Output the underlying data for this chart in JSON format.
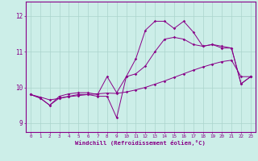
{
  "xlabel": "Windchill (Refroidissement éolien,°C)",
  "background_color": "#cceee8",
  "grid_color": "#aad4cc",
  "line_color": "#880088",
  "x_hours": [
    0,
    1,
    2,
    3,
    4,
    5,
    6,
    7,
    8,
    9,
    10,
    11,
    12,
    13,
    14,
    15,
    16,
    17,
    18,
    19,
    20,
    21,
    22,
    23
  ],
  "line_jagged": [
    9.8,
    9.7,
    9.5,
    9.7,
    9.75,
    9.8,
    9.8,
    9.75,
    9.75,
    9.15,
    10.3,
    10.8,
    11.6,
    11.85,
    11.85,
    11.65,
    11.85,
    11.55,
    11.15,
    11.2,
    11.15,
    11.1,
    10.1,
    10.3
  ],
  "line_mid": [
    9.8,
    9.7,
    9.5,
    9.75,
    9.82,
    9.85,
    9.85,
    9.8,
    10.3,
    9.85,
    10.3,
    10.38,
    10.6,
    11.0,
    11.35,
    11.4,
    11.35,
    11.2,
    11.15,
    11.2,
    11.1,
    11.1,
    10.1,
    10.3
  ],
  "line_smooth": [
    9.8,
    9.73,
    9.65,
    9.69,
    9.74,
    9.77,
    9.8,
    9.82,
    9.84,
    9.83,
    9.87,
    9.93,
    10.0,
    10.09,
    10.18,
    10.28,
    10.38,
    10.48,
    10.57,
    10.65,
    10.72,
    10.76,
    10.3,
    10.3
  ],
  "ylim": [
    8.75,
    12.4
  ],
  "yticks": [
    9,
    10,
    11,
    12
  ],
  "xlim": [
    -0.5,
    23.5
  ]
}
